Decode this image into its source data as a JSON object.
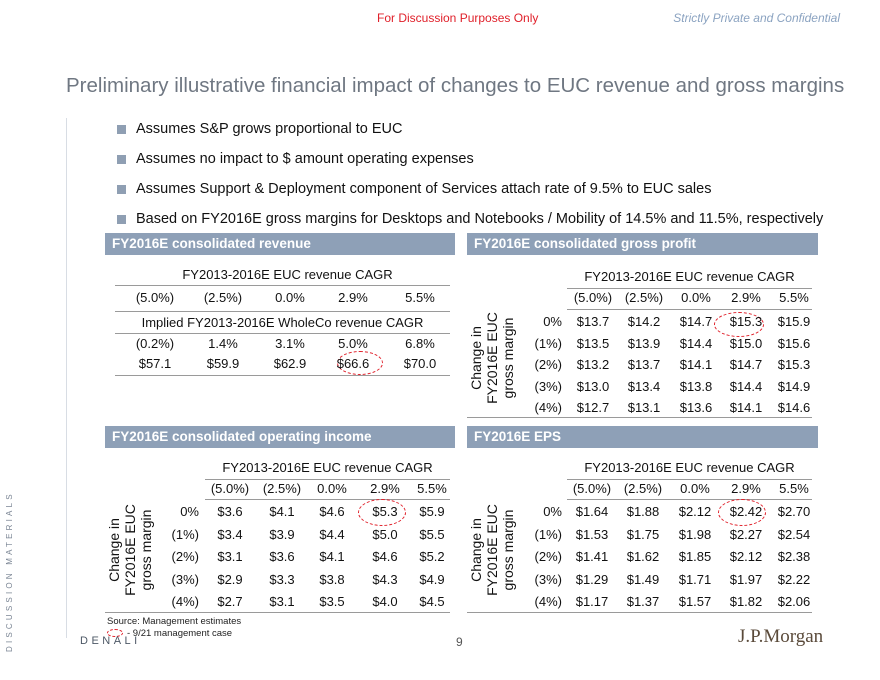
{
  "header": {
    "left": "For Discussion Purposes Only",
    "right": "Strictly Private and Confidential"
  },
  "title": "Preliminary illustrative financial impact of changes to EUC revenue and gross margins",
  "bullets": [
    "Assumes S&P grows proportional to EUC",
    "Assumes no impact to $ amount operating expenses",
    "Assumes Support & Deployment component of Services attach rate of 9.5% to EUC sales",
    "Based on FY2016E gross margins for Desktops and Notebooks / Mobility of 14.5% and 11.5%, respectively"
  ],
  "revenue": {
    "header": "FY2016E consolidated revenue",
    "cagr_label": "FY2013-2016E EUC revenue CAGR",
    "cagr_values": [
      "(5.0%)",
      "(2.5%)",
      "0.0%",
      "2.9%",
      "5.5%"
    ],
    "implied_label": "Implied FY2013-2016E WholeCo revenue CAGR",
    "implied_values": [
      "(0.2%)",
      "1.4%",
      "3.1%",
      "5.0%",
      "6.8%"
    ],
    "revenue_values": [
      "$57.1",
      "$59.9",
      "$62.9",
      "$66.6",
      "$70.0"
    ]
  },
  "gross_profit": {
    "header": "FY2016E consolidated gross profit",
    "cagr_label": "FY2013-2016E EUC revenue CAGR",
    "col_labels": [
      "(5.0%)",
      "(2.5%)",
      "0.0%",
      "2.9%",
      "5.5%"
    ],
    "side_label_1": "Change in",
    "side_label_2": "FY2016E EUC",
    "side_label_3": "gross margin",
    "row_labels": [
      "0%",
      "(1%)",
      "(2%)",
      "(3%)",
      "(4%)"
    ],
    "rows": [
      [
        "$13.7",
        "$14.2",
        "$14.7",
        "$15.3",
        "$15.9"
      ],
      [
        "$13.5",
        "$13.9",
        "$14.4",
        "$15.0",
        "$15.6"
      ],
      [
        "$13.2",
        "$13.7",
        "$14.1",
        "$14.7",
        "$15.3"
      ],
      [
        "$13.0",
        "$13.4",
        "$13.8",
        "$14.4",
        "$14.9"
      ],
      [
        "$12.7",
        "$13.1",
        "$13.6",
        "$14.1",
        "$14.6"
      ]
    ]
  },
  "operating_income": {
    "header": "FY2016E consolidated operating income",
    "cagr_label": "FY2013-2016E EUC revenue CAGR",
    "col_labels": [
      "(5.0%)",
      "(2.5%)",
      "0.0%",
      "2.9%",
      "5.5%"
    ],
    "side_label_1": "Change in",
    "side_label_2": "FY2016E EUC",
    "side_label_3": "gross margin",
    "row_labels": [
      "0%",
      "(1%)",
      "(2%)",
      "(3%)",
      "(4%)"
    ],
    "rows": [
      [
        "$3.6",
        "$4.1",
        "$4.6",
        "$5.3",
        "$5.9"
      ],
      [
        "$3.4",
        "$3.9",
        "$4.4",
        "$5.0",
        "$5.5"
      ],
      [
        "$3.1",
        "$3.6",
        "$4.1",
        "$4.6",
        "$5.2"
      ],
      [
        "$2.9",
        "$3.3",
        "$3.8",
        "$4.3",
        "$4.9"
      ],
      [
        "$2.7",
        "$3.1",
        "$3.5",
        "$4.0",
        "$4.5"
      ]
    ]
  },
  "eps": {
    "header": "FY2016E EPS",
    "cagr_label": "FY2013-2016E EUC revenue CAGR",
    "col_labels": [
      "(5.0%)",
      "(2.5%)",
      "0.0%",
      "2.9%",
      "5.5%"
    ],
    "side_label_1": "Change in",
    "side_label_2": "FY2016E EUC",
    "side_label_3": "gross margin",
    "row_labels": [
      "0%",
      "(1%)",
      "(2%)",
      "(3%)",
      "(4%)"
    ],
    "rows": [
      [
        "$1.64",
        "$1.88",
        "$2.12",
        "$2.42",
        "$2.70"
      ],
      [
        "$1.53",
        "$1.75",
        "$1.98",
        "$2.27",
        "$2.54"
      ],
      [
        "$1.41",
        "$1.62",
        "$1.85",
        "$2.12",
        "$2.38"
      ],
      [
        "$1.29",
        "$1.49",
        "$1.71",
        "$1.97",
        "$2.22"
      ],
      [
        "$1.17",
        "$1.37",
        "$1.57",
        "$1.82",
        "$2.06"
      ]
    ]
  },
  "source": "Source: Management estimates",
  "legend": "- 9/21 management case",
  "sidebar_text": "DISCUSSION MATERIALS",
  "footer": {
    "project": "DENALI",
    "page": "9",
    "logo": "J.P.Morgan"
  }
}
